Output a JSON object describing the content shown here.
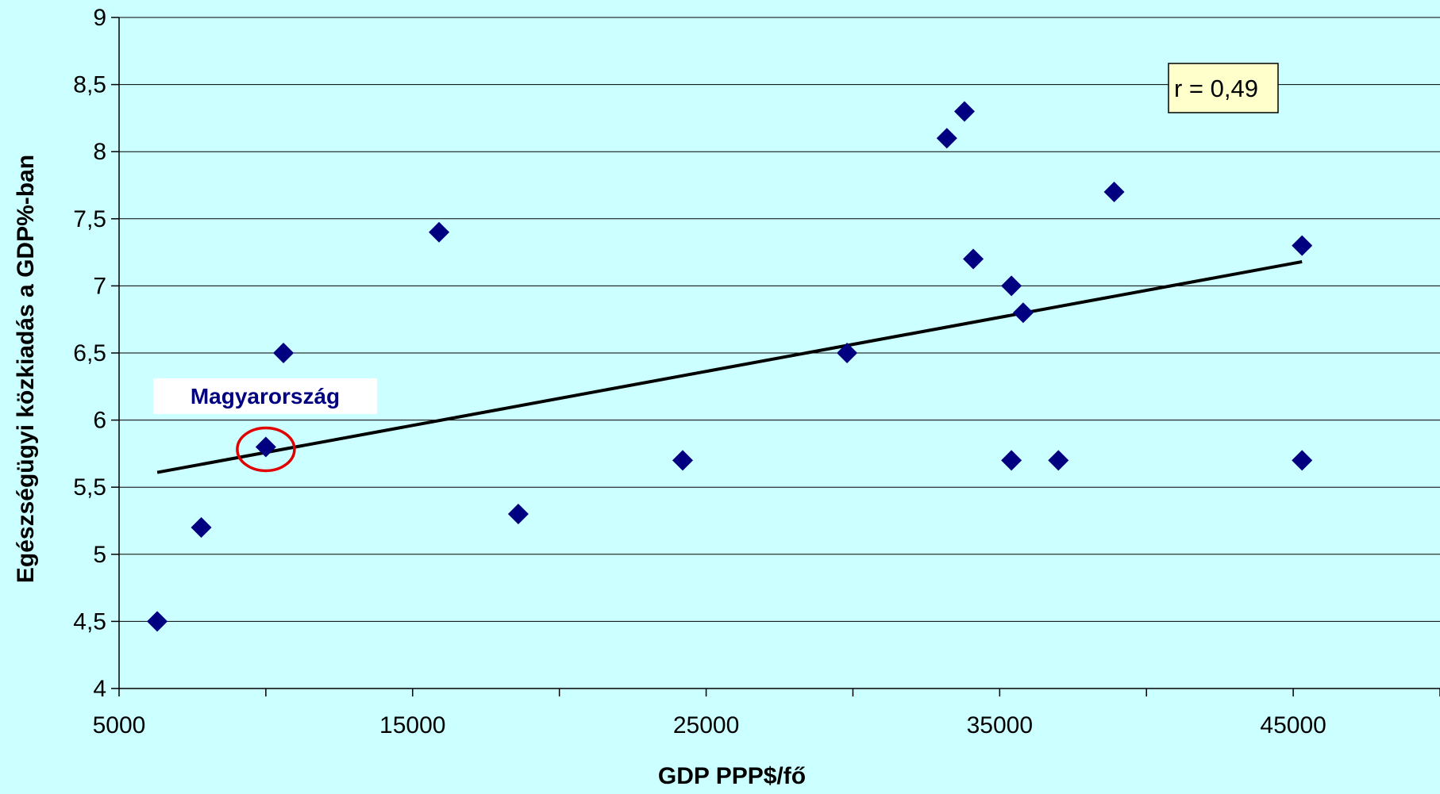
{
  "chart_data": {
    "type": "scatter",
    "title": "",
    "xlabel": "GDP PPP$/fő",
    "ylabel": "Egészségügyi közkiadás a GDP%-ban",
    "xlim": [
      5000,
      50000
    ],
    "ylim": [
      4,
      9
    ],
    "x_ticks": [
      5000,
      15000,
      25000,
      35000,
      45000
    ],
    "x_tick_labels": [
      "5000",
      "15000",
      "25000",
      "35000",
      "45000"
    ],
    "y_ticks": [
      4,
      4.5,
      5,
      5.5,
      6,
      6.5,
      7,
      7.5,
      8,
      8.5,
      9
    ],
    "y_tick_labels": [
      "4",
      "4,5",
      "5",
      "5,5",
      "6",
      "6,5",
      "7",
      "7,5",
      "8",
      "8,5",
      "9"
    ],
    "grid": "horizontal",
    "colors": {
      "background": "#CCFFFF",
      "marker": "#000080",
      "trendline": "#000000",
      "highlight": "#E00000",
      "r_box": "#FFFFCC"
    },
    "series": [
      {
        "marker": "diamond",
        "points": [
          {
            "x": 6300,
            "y": 4.5
          },
          {
            "x": 7800,
            "y": 5.2
          },
          {
            "x": 10000,
            "y": 5.8
          },
          {
            "x": 10600,
            "y": 6.5
          },
          {
            "x": 15900,
            "y": 7.4
          },
          {
            "x": 18600,
            "y": 5.3
          },
          {
            "x": 24200,
            "y": 5.7
          },
          {
            "x": 29800,
            "y": 6.5
          },
          {
            "x": 33200,
            "y": 8.1
          },
          {
            "x": 33800,
            "y": 8.3
          },
          {
            "x": 34100,
            "y": 7.2
          },
          {
            "x": 35400,
            "y": 7.0
          },
          {
            "x": 35400,
            "y": 5.7
          },
          {
            "x": 35800,
            "y": 6.8
          },
          {
            "x": 37000,
            "y": 5.7
          },
          {
            "x": 38900,
            "y": 7.7
          },
          {
            "x": 45300,
            "y": 7.3
          },
          {
            "x": 45300,
            "y": 5.7
          }
        ]
      }
    ],
    "trendline": {
      "x": [
        6300,
        45300
      ],
      "y": [
        5.61,
        7.18
      ]
    },
    "annotations": {
      "highlight_label": "Magyarország",
      "highlight_point": {
        "x": 10000,
        "y": 5.8
      },
      "correlation_label": "r = 0,49"
    }
  }
}
